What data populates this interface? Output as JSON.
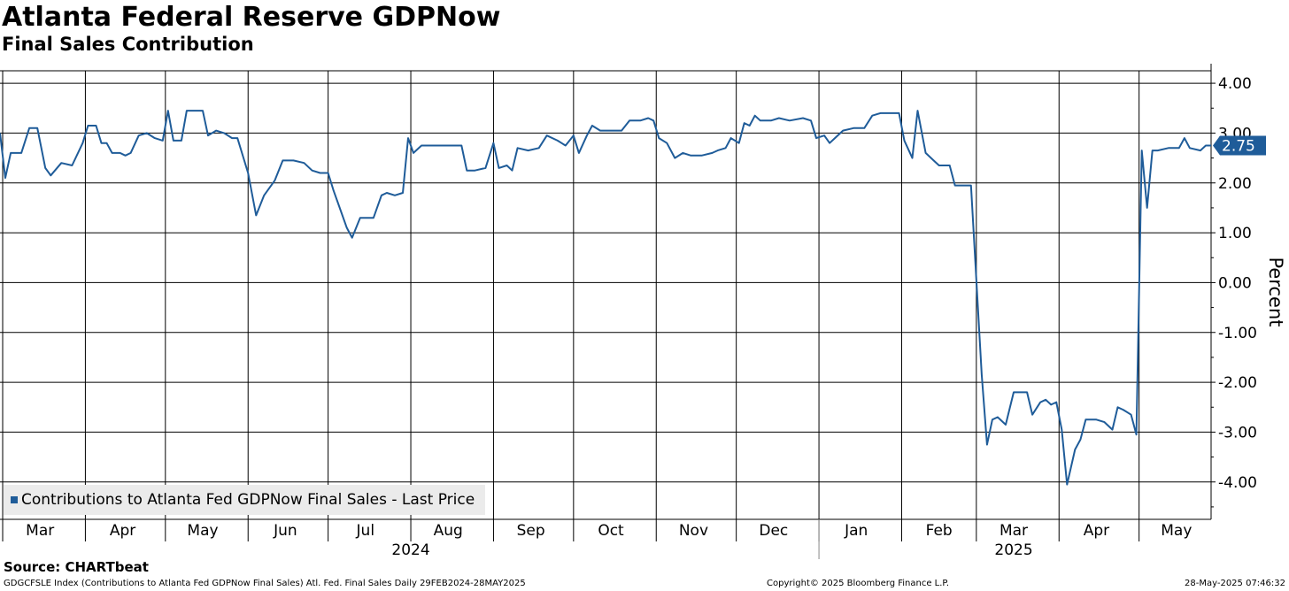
{
  "title": "Atlanta Federal Reserve GDPNow",
  "subtitle": "Final Sales Contribution",
  "source": "Source: CHARTbeat",
  "footer": {
    "left": "GDGCFSLE Index (Contributions to Atlanta Fed GDPNow Final Sales) Atl. Fed. Final Sales  Daily 29FEB2024-28MAY2025",
    "center": "Copyright© 2025 Bloomberg Finance L.P.",
    "right": "28-May-2025 07:46:32"
  },
  "legend": {
    "label": "Contributions to Atlanta Fed GDPNow Final Sales - Last Price"
  },
  "colors": {
    "line": "#1f5c99",
    "last_badge": "#1f5c99",
    "grid": "#000000"
  },
  "chart_data": {
    "type": "line",
    "ylabel": "Percent",
    "ylim": [
      -4.75,
      4.25
    ],
    "yticks": [
      "4.00",
      "3.00",
      "2.00",
      "1.00",
      "0.00",
      "-1.00",
      "-2.00",
      "-3.00",
      "-4.00"
    ],
    "ytick_values": [
      4,
      3,
      2,
      1,
      0,
      -1,
      -2,
      -3,
      -4
    ],
    "xlim": [
      "2024-02-29",
      "2025-05-28"
    ],
    "x_month_labels": [
      "Mar",
      "Apr",
      "May",
      "Jun",
      "Jul",
      "Aug",
      "Sep",
      "Oct",
      "Nov",
      "Dec",
      "Jan",
      "Feb",
      "Mar",
      "Apr",
      "May"
    ],
    "x_month_dates": [
      "2024-03-15",
      "2024-04-15",
      "2024-05-15",
      "2024-06-15",
      "2024-07-15",
      "2024-08-15",
      "2024-09-15",
      "2024-10-15",
      "2024-11-15",
      "2024-12-15",
      "2025-01-15",
      "2025-02-15",
      "2025-03-15",
      "2025-04-15",
      "2025-05-15"
    ],
    "x_year_labels": [
      "2024",
      "2025"
    ],
    "x_year_dates": [
      "2024-08-01",
      "2025-03-15"
    ],
    "last_value_label": "2.75",
    "legend_position": "bottom-left",
    "grid": true,
    "series": [
      {
        "name": "Contributions to Atlanta Fed GDPNow Final Sales - Last Price",
        "color": "#1f5c99",
        "points": [
          [
            "2024-02-29",
            3.0
          ],
          [
            "2024-03-02",
            2.1
          ],
          [
            "2024-03-04",
            2.6
          ],
          [
            "2024-03-08",
            2.6
          ],
          [
            "2024-03-11",
            3.1
          ],
          [
            "2024-03-14",
            3.1
          ],
          [
            "2024-03-17",
            2.3
          ],
          [
            "2024-03-19",
            2.15
          ],
          [
            "2024-03-23",
            2.4
          ],
          [
            "2024-03-27",
            2.35
          ],
          [
            "2024-03-31",
            2.8
          ],
          [
            "2024-04-02",
            3.15
          ],
          [
            "2024-04-05",
            3.15
          ],
          [
            "2024-04-07",
            2.8
          ],
          [
            "2024-04-09",
            2.8
          ],
          [
            "2024-04-11",
            2.6
          ],
          [
            "2024-04-14",
            2.6
          ],
          [
            "2024-04-16",
            2.55
          ],
          [
            "2024-04-18",
            2.6
          ],
          [
            "2024-04-21",
            2.95
          ],
          [
            "2024-04-24",
            3.0
          ],
          [
            "2024-04-27",
            2.9
          ],
          [
            "2024-04-30",
            2.85
          ],
          [
            "2024-05-02",
            3.45
          ],
          [
            "2024-05-04",
            2.85
          ],
          [
            "2024-05-07",
            2.85
          ],
          [
            "2024-05-09",
            3.45
          ],
          [
            "2024-05-12",
            3.45
          ],
          [
            "2024-05-15",
            3.45
          ],
          [
            "2024-05-17",
            2.95
          ],
          [
            "2024-05-20",
            3.05
          ],
          [
            "2024-05-23",
            3.0
          ],
          [
            "2024-05-26",
            2.9
          ],
          [
            "2024-05-28",
            2.9
          ],
          [
            "2024-06-01",
            2.2
          ],
          [
            "2024-06-04",
            1.35
          ],
          [
            "2024-06-07",
            1.75
          ],
          [
            "2024-06-11",
            2.05
          ],
          [
            "2024-06-14",
            2.45
          ],
          [
            "2024-06-18",
            2.45
          ],
          [
            "2024-06-22",
            2.4
          ],
          [
            "2024-06-25",
            2.25
          ],
          [
            "2024-06-28",
            2.2
          ],
          [
            "2024-07-01",
            2.2
          ],
          [
            "2024-07-03",
            1.85
          ],
          [
            "2024-07-06",
            1.4
          ],
          [
            "2024-07-08",
            1.1
          ],
          [
            "2024-07-10",
            0.9
          ],
          [
            "2024-07-13",
            1.3
          ],
          [
            "2024-07-16",
            1.3
          ],
          [
            "2024-07-18",
            1.3
          ],
          [
            "2024-07-21",
            1.75
          ],
          [
            "2024-07-23",
            1.8
          ],
          [
            "2024-07-26",
            1.75
          ],
          [
            "2024-07-29",
            1.8
          ],
          [
            "2024-07-31",
            2.9
          ],
          [
            "2024-08-02",
            2.6
          ],
          [
            "2024-08-05",
            2.75
          ],
          [
            "2024-08-09",
            2.75
          ],
          [
            "2024-08-14",
            2.75
          ],
          [
            "2024-08-18",
            2.75
          ],
          [
            "2024-08-20",
            2.75
          ],
          [
            "2024-08-22",
            2.25
          ],
          [
            "2024-08-25",
            2.25
          ],
          [
            "2024-08-29",
            2.3
          ],
          [
            "2024-09-01",
            2.8
          ],
          [
            "2024-09-03",
            2.3
          ],
          [
            "2024-09-06",
            2.35
          ],
          [
            "2024-09-08",
            2.25
          ],
          [
            "2024-09-10",
            2.7
          ],
          [
            "2024-09-14",
            2.65
          ],
          [
            "2024-09-18",
            2.7
          ],
          [
            "2024-09-21",
            2.95
          ],
          [
            "2024-09-25",
            2.85
          ],
          [
            "2024-09-28",
            2.75
          ],
          [
            "2024-10-01",
            2.95
          ],
          [
            "2024-10-03",
            2.6
          ],
          [
            "2024-10-06",
            2.95
          ],
          [
            "2024-10-08",
            3.15
          ],
          [
            "2024-10-11",
            3.05
          ],
          [
            "2024-10-15",
            3.05
          ],
          [
            "2024-10-19",
            3.05
          ],
          [
            "2024-10-22",
            3.25
          ],
          [
            "2024-10-26",
            3.25
          ],
          [
            "2024-10-29",
            3.3
          ],
          [
            "2024-10-31",
            3.25
          ],
          [
            "2024-11-02",
            2.9
          ],
          [
            "2024-11-05",
            2.8
          ],
          [
            "2024-11-08",
            2.5
          ],
          [
            "2024-11-11",
            2.6
          ],
          [
            "2024-11-14",
            2.55
          ],
          [
            "2024-11-18",
            2.55
          ],
          [
            "2024-11-22",
            2.6
          ],
          [
            "2024-11-24",
            2.65
          ],
          [
            "2024-11-27",
            2.7
          ],
          [
            "2024-11-29",
            2.9
          ],
          [
            "2024-12-02",
            2.8
          ],
          [
            "2024-12-04",
            3.2
          ],
          [
            "2024-12-06",
            3.15
          ],
          [
            "2024-12-08",
            3.35
          ],
          [
            "2024-12-10",
            3.25
          ],
          [
            "2024-12-14",
            3.25
          ],
          [
            "2024-12-17",
            3.3
          ],
          [
            "2024-12-21",
            3.25
          ],
          [
            "2024-12-26",
            3.3
          ],
          [
            "2024-12-29",
            3.25
          ],
          [
            "2024-12-31",
            2.9
          ],
          [
            "2025-01-03",
            2.95
          ],
          [
            "2025-01-05",
            2.8
          ],
          [
            "2025-01-07",
            2.9
          ],
          [
            "2025-01-10",
            3.05
          ],
          [
            "2025-01-14",
            3.1
          ],
          [
            "2025-01-18",
            3.1
          ],
          [
            "2025-01-21",
            3.35
          ],
          [
            "2025-01-24",
            3.4
          ],
          [
            "2025-01-28",
            3.4
          ],
          [
            "2025-01-31",
            3.4
          ],
          [
            "2025-02-02",
            2.85
          ],
          [
            "2025-02-05",
            2.5
          ],
          [
            "2025-02-07",
            3.45
          ],
          [
            "2025-02-10",
            2.6
          ],
          [
            "2025-02-13",
            2.45
          ],
          [
            "2025-02-15",
            2.35
          ],
          [
            "2025-02-19",
            2.35
          ],
          [
            "2025-02-21",
            1.95
          ],
          [
            "2025-02-24",
            1.95
          ],
          [
            "2025-02-27",
            1.95
          ],
          [
            "2025-03-03",
            -1.85
          ],
          [
            "2025-03-05",
            -3.25
          ],
          [
            "2025-03-07",
            -2.75
          ],
          [
            "2025-03-09",
            -2.7
          ],
          [
            "2025-03-12",
            -2.85
          ],
          [
            "2025-03-15",
            -2.2
          ],
          [
            "2025-03-18",
            -2.2
          ],
          [
            "2025-03-20",
            -2.2
          ],
          [
            "2025-03-22",
            -2.65
          ],
          [
            "2025-03-25",
            -2.4
          ],
          [
            "2025-03-27",
            -2.35
          ],
          [
            "2025-03-29",
            -2.45
          ],
          [
            "2025-03-31",
            -2.4
          ],
          [
            "2025-04-02",
            -2.95
          ],
          [
            "2025-04-04",
            -4.05
          ],
          [
            "2025-04-07",
            -3.35
          ],
          [
            "2025-04-09",
            -3.15
          ],
          [
            "2025-04-11",
            -2.75
          ],
          [
            "2025-04-15",
            -2.75
          ],
          [
            "2025-04-18",
            -2.8
          ],
          [
            "2025-04-21",
            -2.95
          ],
          [
            "2025-04-23",
            -2.5
          ],
          [
            "2025-04-25",
            -2.55
          ],
          [
            "2025-04-28",
            -2.65
          ],
          [
            "2025-04-30",
            -3.05
          ],
          [
            "2025-05-02",
            2.65
          ],
          [
            "2025-05-04",
            1.5
          ],
          [
            "2025-05-06",
            2.65
          ],
          [
            "2025-05-08",
            2.65
          ],
          [
            "2025-05-12",
            2.7
          ],
          [
            "2025-05-16",
            2.7
          ],
          [
            "2025-05-18",
            2.9
          ],
          [
            "2025-05-20",
            2.7
          ],
          [
            "2025-05-24",
            2.65
          ],
          [
            "2025-05-26",
            2.75
          ],
          [
            "2025-05-28",
            2.75
          ]
        ]
      }
    ]
  }
}
